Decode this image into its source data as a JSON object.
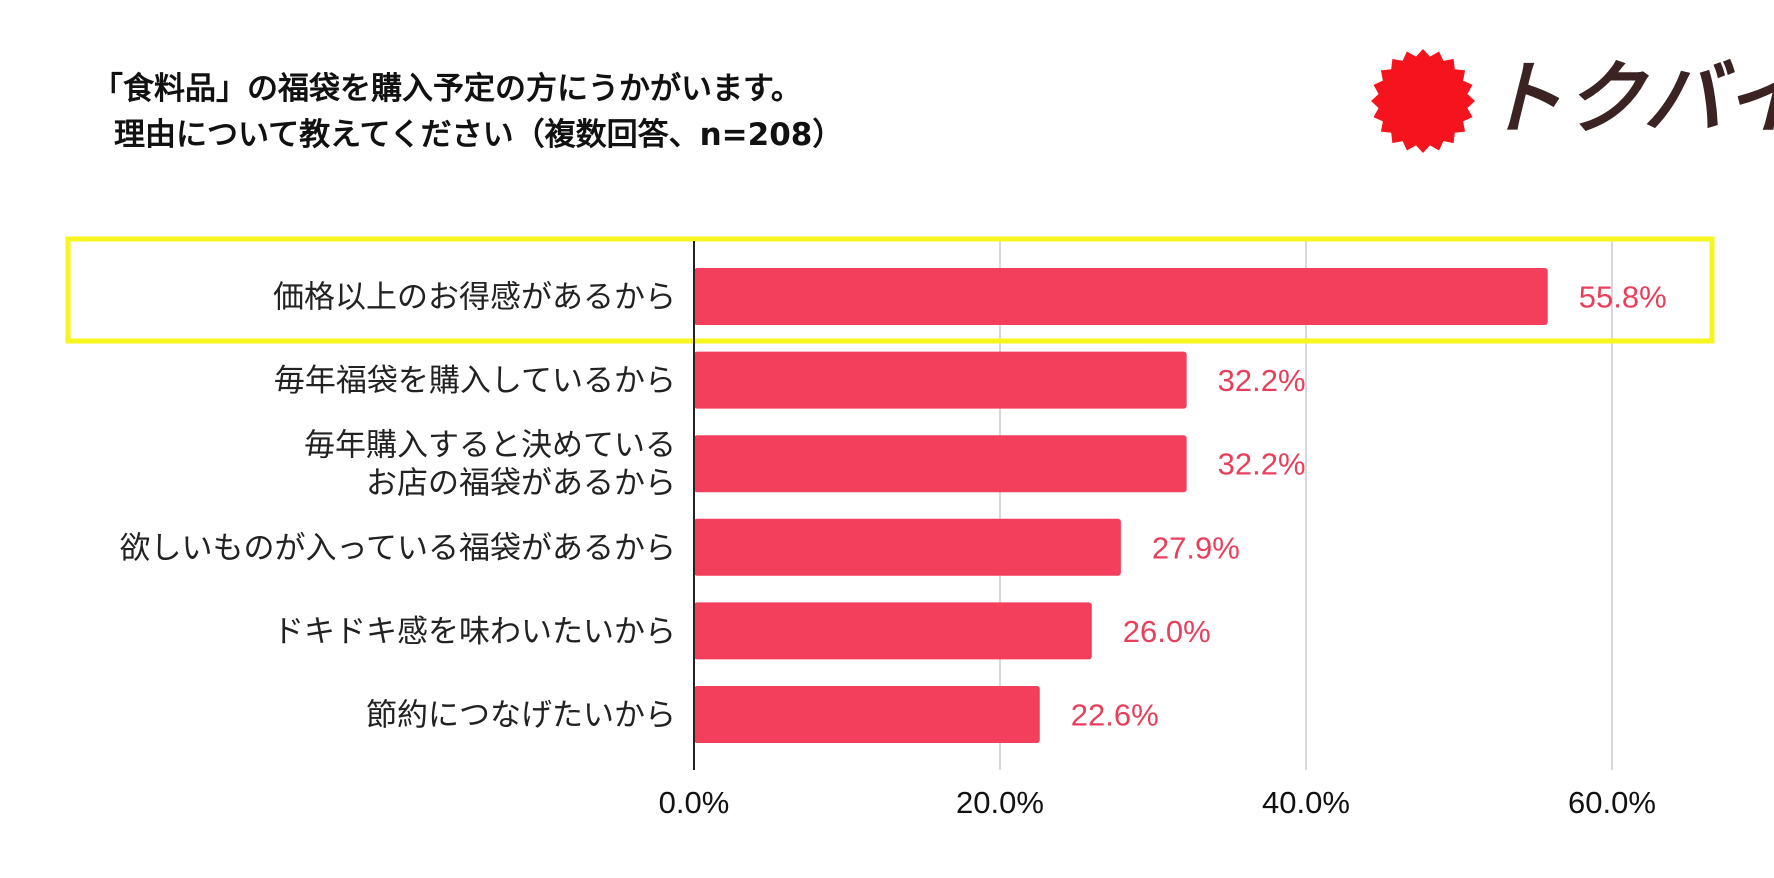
{
  "title": {
    "line1": "「食料品」の福袋を購入予定の方にうかがいます。",
    "line2": "理由について教えてください（複数回答、n=208）"
  },
  "logo": {
    "text": "トクバイ",
    "icon": "red-starburst-icon",
    "color": "#f5141e",
    "text_color": "#3a2322"
  },
  "colors": {
    "bar": "#f43f5c",
    "value_label": "#e8405c",
    "highlight": "#f7f51e",
    "grid": "#cccccc",
    "axis": "#222222"
  },
  "chart_data": {
    "type": "bar",
    "orientation": "horizontal",
    "categories": [
      [
        "価格以上のお得感があるから"
      ],
      [
        "毎年福袋を購入しているから"
      ],
      [
        "毎年購入すると決めている",
        "お店の福袋があるから"
      ],
      [
        "欲しいものが入っている福袋があるから"
      ],
      [
        "ドキドキ感を味わいたいから"
      ],
      [
        "節約につなげたいから"
      ]
    ],
    "values": [
      55.8,
      32.2,
      32.2,
      27.9,
      26.0,
      22.6
    ],
    "value_labels": [
      "55.8%",
      "32.2%",
      "32.2%",
      "27.9%",
      "26.0%",
      "22.6%"
    ],
    "xlim": [
      0,
      60
    ],
    "xticks": [
      0,
      20,
      40,
      60
    ],
    "xtick_labels": [
      "0.0%",
      "20.0%",
      "40.0%",
      "60.0%"
    ],
    "grid": true,
    "highlighted_index": 0
  }
}
